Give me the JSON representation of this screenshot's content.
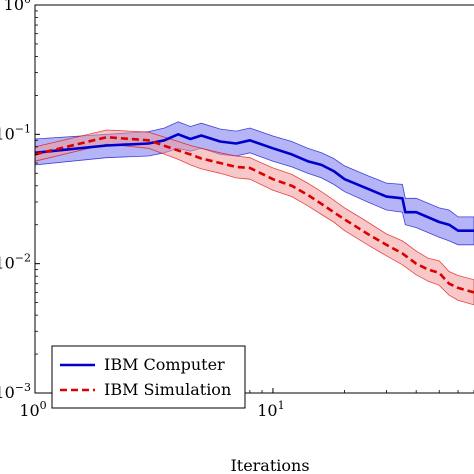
{
  "chart_data": {
    "type": "line",
    "title": "",
    "xlabel": "Iterations",
    "ylabel": "",
    "x_scale": "log",
    "y_scale": "log",
    "xlim": [
      1,
      70
    ],
    "ylim": [
      0.001,
      1
    ],
    "x_ticks": [
      {
        "value": 1,
        "base": "10",
        "exp": "0"
      },
      {
        "value": 10,
        "base": "10",
        "exp": "1"
      }
    ],
    "y_ticks": [
      {
        "value": 1,
        "base": "10",
        "exp": "0"
      },
      {
        "value": 0.1,
        "base": "10",
        "exp": "−1"
      },
      {
        "value": 0.01,
        "base": "10",
        "exp": "−2"
      },
      {
        "value": 0.001,
        "base": "10",
        "exp": "−3"
      }
    ],
    "legend_position": "bottom-left",
    "series": [
      {
        "name": "IBM Computer",
        "color": "#0000cc",
        "fill": "#7777ee",
        "style": "solid",
        "x": [
          1,
          2,
          3,
          3.5,
          4,
          4.5,
          5,
          6,
          7,
          8,
          10,
          12,
          14,
          16,
          18,
          20,
          25,
          30,
          35,
          36,
          40,
          50,
          55,
          60,
          70
        ],
        "y": [
          0.072,
          0.082,
          0.085,
          0.09,
          0.1,
          0.092,
          0.098,
          0.088,
          0.085,
          0.09,
          0.078,
          0.07,
          0.062,
          0.058,
          0.052,
          0.045,
          0.038,
          0.033,
          0.032,
          0.025,
          0.025,
          0.021,
          0.02,
          0.018,
          0.018
        ],
        "lower": [
          0.058,
          0.066,
          0.068,
          0.072,
          0.078,
          0.074,
          0.078,
          0.07,
          0.068,
          0.072,
          0.062,
          0.056,
          0.05,
          0.046,
          0.041,
          0.036,
          0.03,
          0.026,
          0.025,
          0.02,
          0.019,
          0.016,
          0.015,
          0.014,
          0.014
        ],
        "upper": [
          0.092,
          0.1,
          0.105,
          0.112,
          0.125,
          0.115,
          0.122,
          0.11,
          0.106,
          0.112,
          0.097,
          0.088,
          0.078,
          0.072,
          0.065,
          0.057,
          0.048,
          0.042,
          0.041,
          0.032,
          0.032,
          0.027,
          0.026,
          0.023,
          0.023
        ]
      },
      {
        "name": "IBM Simulation",
        "color": "#dd0000",
        "fill": "#f29a9a",
        "style": "dashed",
        "x": [
          1,
          2,
          3,
          4,
          4.5,
          5,
          6,
          7,
          8,
          10,
          12,
          14,
          16,
          18,
          20,
          25,
          30,
          35,
          40,
          45,
          50,
          55,
          60,
          70
        ],
        "y": [
          0.07,
          0.095,
          0.09,
          0.075,
          0.07,
          0.065,
          0.06,
          0.056,
          0.055,
          0.045,
          0.04,
          0.034,
          0.029,
          0.025,
          0.022,
          0.017,
          0.014,
          0.012,
          0.01,
          0.009,
          0.0085,
          0.007,
          0.0065,
          0.006
        ],
        "lower": [
          0.062,
          0.084,
          0.078,
          0.064,
          0.058,
          0.054,
          0.05,
          0.046,
          0.045,
          0.037,
          0.033,
          0.028,
          0.024,
          0.021,
          0.018,
          0.014,
          0.0115,
          0.0098,
          0.0082,
          0.0073,
          0.0068,
          0.0057,
          0.0052,
          0.0048
        ],
        "upper": [
          0.08,
          0.108,
          0.104,
          0.088,
          0.082,
          0.078,
          0.072,
          0.068,
          0.066,
          0.055,
          0.049,
          0.042,
          0.036,
          0.031,
          0.027,
          0.021,
          0.017,
          0.015,
          0.0125,
          0.011,
          0.0105,
          0.0087,
          0.0081,
          0.0075
        ]
      }
    ]
  }
}
